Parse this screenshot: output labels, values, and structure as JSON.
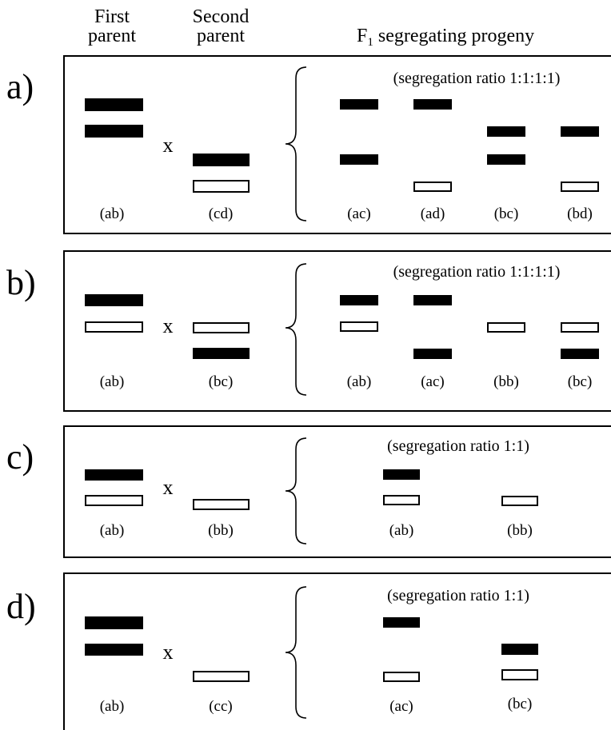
{
  "headers": {
    "first_parent_line1": "First",
    "first_parent_line2": "parent",
    "second_parent_line1": "Second",
    "second_parent_line2": "parent",
    "progeny_main": "F",
    "progeny_sub": "1",
    "progeny_rest": " segregating progeny"
  },
  "cross_symbol": "x",
  "colors": {
    "band_filled": "#000000",
    "band_open": "#ffffff",
    "stroke": "#000000"
  },
  "panels": [
    {
      "label": "a)",
      "ratio": "(segregation ratio 1:1:1:1)",
      "first_parent": "(ab)",
      "second_parent": "(cd)",
      "progeny": [
        "(ac)",
        "(ad)",
        "(bc)",
        "(bd)"
      ]
    },
    {
      "label": "b)",
      "ratio": "(segregation ratio 1:1:1:1)",
      "first_parent": "(ab)",
      "second_parent": "(bc)",
      "progeny": [
        "(ab)",
        "(ac)",
        "(bb)",
        "(bc)"
      ]
    },
    {
      "label": "c)",
      "ratio": "(segregation ratio 1:1)",
      "first_parent": "(ab)",
      "second_parent": "(bb)",
      "progeny": [
        "(ab)",
        "(bb)"
      ]
    },
    {
      "label": "d)",
      "ratio": "(segregation ratio 1:1)",
      "first_parent": "(ab)",
      "second_parent": "(cc)",
      "progeny": [
        "(ac)",
        "(bc)"
      ]
    }
  ]
}
